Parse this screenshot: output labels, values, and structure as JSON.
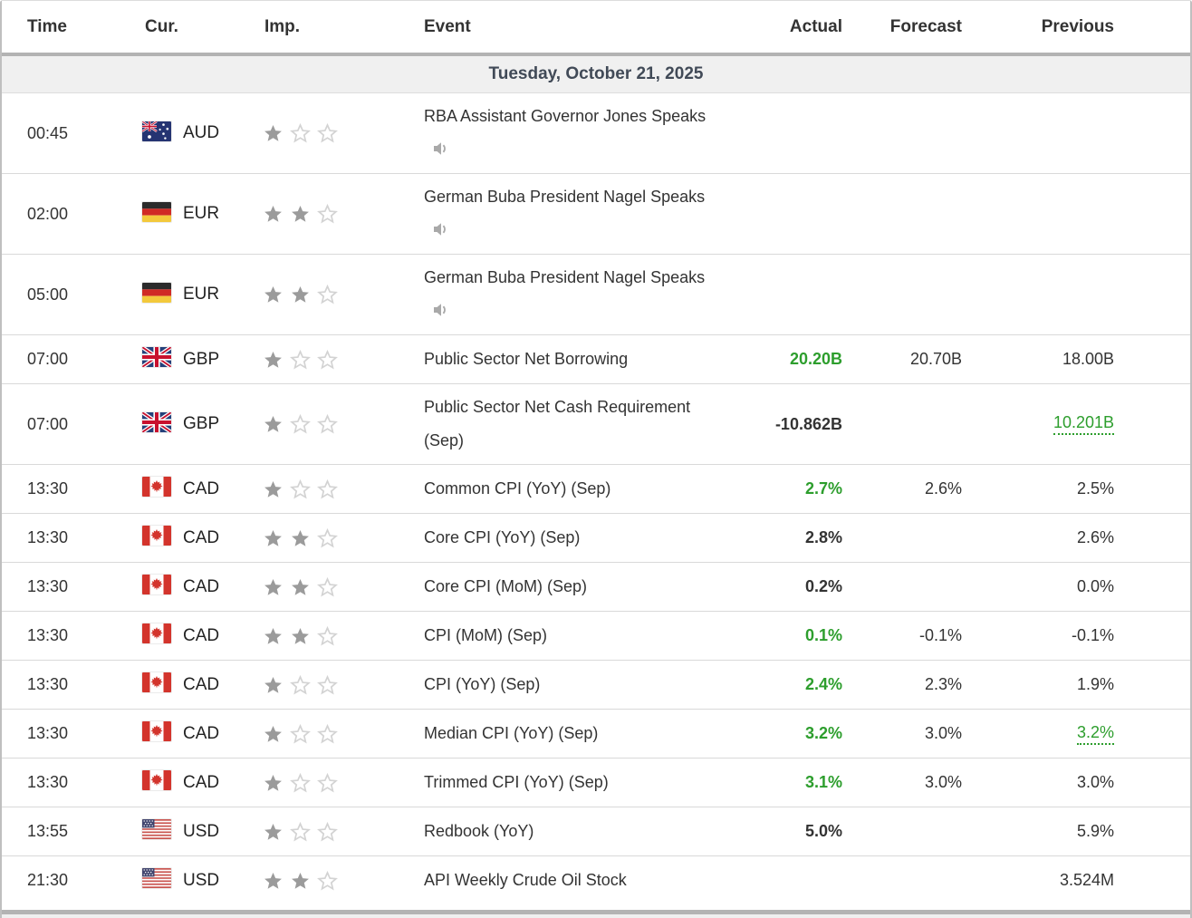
{
  "colors": {
    "positive_green": "#2d9e2d",
    "date_band_bg": "#f0f0f0",
    "date_text": "#414a57",
    "star_filled": "#9b9b9b",
    "star_empty": "#d3d3d3"
  },
  "table": {
    "columns": [
      "Time",
      "Cur.",
      "Imp.",
      "Event",
      "Actual",
      "Forecast",
      "Previous"
    ],
    "date_label": "Tuesday, October 21, 2025",
    "stars_max": 3,
    "rows": [
      {
        "time": "00:45",
        "currency": "AUD",
        "flag": "au",
        "stars": 1,
        "event": "RBA Assistant Governor Jones Speaks",
        "speaker": true,
        "tall": true,
        "actual": "",
        "actual_positive": false,
        "forecast": "",
        "previous": "",
        "previous_green_dotted": false
      },
      {
        "time": "02:00",
        "currency": "EUR",
        "flag": "de",
        "stars": 2,
        "event": "German Buba President Nagel Speaks",
        "speaker": true,
        "tall": true,
        "actual": "",
        "actual_positive": false,
        "forecast": "",
        "previous": "",
        "previous_green_dotted": false
      },
      {
        "time": "05:00",
        "currency": "EUR",
        "flag": "de",
        "stars": 2,
        "event": "German Buba President Nagel Speaks",
        "speaker": true,
        "tall": true,
        "actual": "",
        "actual_positive": false,
        "forecast": "",
        "previous": "",
        "previous_green_dotted": false
      },
      {
        "time": "07:00",
        "currency": "GBP",
        "flag": "gb",
        "stars": 1,
        "event": "Public Sector Net Borrowing",
        "speaker": false,
        "tall": false,
        "actual": "20.20B",
        "actual_positive": true,
        "forecast": "20.70B",
        "previous": "18.00B",
        "previous_green_dotted": false
      },
      {
        "time": "07:00",
        "currency": "GBP",
        "flag": "gb",
        "stars": 1,
        "event": "Public Sector Net Cash Requirement (Sep)",
        "speaker": false,
        "tall": true,
        "actual": "-10.862B",
        "actual_positive": false,
        "forecast": "",
        "previous": "10.201B",
        "previous_green_dotted": true
      },
      {
        "time": "13:30",
        "currency": "CAD",
        "flag": "ca",
        "stars": 1,
        "event": "Common CPI (YoY) (Sep)",
        "speaker": false,
        "tall": false,
        "actual": "2.7%",
        "actual_positive": true,
        "forecast": "2.6%",
        "previous": "2.5%",
        "previous_green_dotted": false
      },
      {
        "time": "13:30",
        "currency": "CAD",
        "flag": "ca",
        "stars": 2,
        "event": "Core CPI (YoY) (Sep)",
        "speaker": false,
        "tall": false,
        "actual": "2.8%",
        "actual_positive": false,
        "forecast": "",
        "previous": "2.6%",
        "previous_green_dotted": false
      },
      {
        "time": "13:30",
        "currency": "CAD",
        "flag": "ca",
        "stars": 2,
        "event": "Core CPI (MoM) (Sep)",
        "speaker": false,
        "tall": false,
        "actual": "0.2%",
        "actual_positive": false,
        "forecast": "",
        "previous": "0.0%",
        "previous_green_dotted": false
      },
      {
        "time": "13:30",
        "currency": "CAD",
        "flag": "ca",
        "stars": 2,
        "event": "CPI (MoM) (Sep)",
        "speaker": false,
        "tall": false,
        "actual": "0.1%",
        "actual_positive": true,
        "forecast": "-0.1%",
        "previous": "-0.1%",
        "previous_green_dotted": false
      },
      {
        "time": "13:30",
        "currency": "CAD",
        "flag": "ca",
        "stars": 1,
        "event": "CPI (YoY) (Sep)",
        "speaker": false,
        "tall": false,
        "actual": "2.4%",
        "actual_positive": true,
        "forecast": "2.3%",
        "previous": "1.9%",
        "previous_green_dotted": false
      },
      {
        "time": "13:30",
        "currency": "CAD",
        "flag": "ca",
        "stars": 1,
        "event": "Median CPI (YoY) (Sep)",
        "speaker": false,
        "tall": false,
        "actual": "3.2%",
        "actual_positive": true,
        "forecast": "3.0%",
        "previous": "3.2%",
        "previous_green_dotted": true
      },
      {
        "time": "13:30",
        "currency": "CAD",
        "flag": "ca",
        "stars": 1,
        "event": "Trimmed CPI (YoY) (Sep)",
        "speaker": false,
        "tall": false,
        "actual": "3.1%",
        "actual_positive": true,
        "forecast": "3.0%",
        "previous": "3.0%",
        "previous_green_dotted": false
      },
      {
        "time": "13:55",
        "currency": "USD",
        "flag": "us",
        "stars": 1,
        "event": "Redbook (YoY)",
        "speaker": false,
        "tall": false,
        "actual": "5.0%",
        "actual_positive": false,
        "forecast": "",
        "previous": "5.9%",
        "previous_green_dotted": false
      },
      {
        "time": "21:30",
        "currency": "USD",
        "flag": "us",
        "stars": 2,
        "event": "API Weekly Crude Oil Stock",
        "speaker": false,
        "tall": false,
        "actual": "",
        "actual_positive": false,
        "forecast": "",
        "previous": "3.524M",
        "previous_green_dotted": false
      }
    ]
  }
}
